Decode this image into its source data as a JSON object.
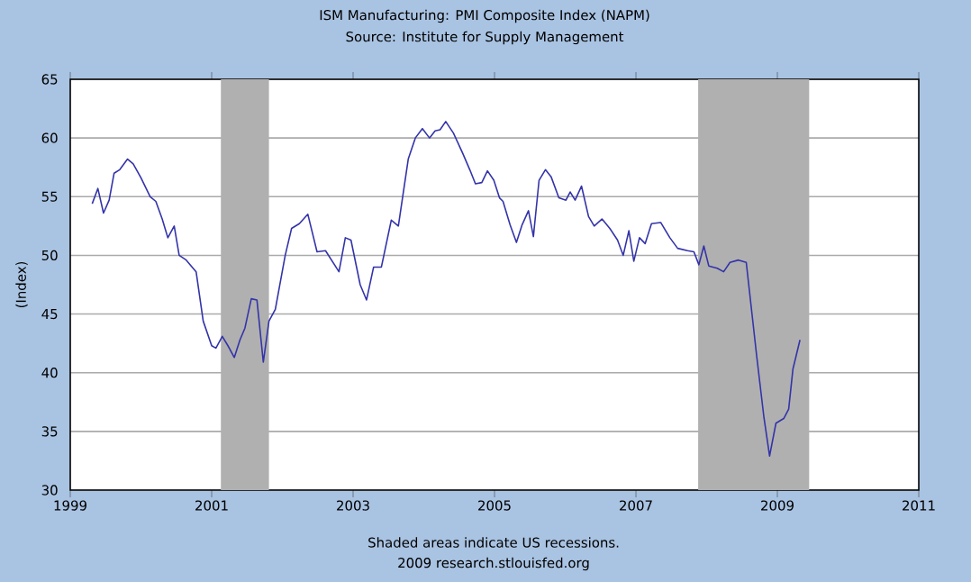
{
  "chart_data": {
    "type": "line",
    "title": "ISM Manufacturing: PMI Composite Index (NAPM)",
    "subtitle": "Source: Institute for Supply Management",
    "ylabel": "(Index)",
    "x": [
      1999.31,
      1999.39,
      1999.47,
      1999.55,
      1999.62,
      1999.7,
      1999.81,
      1999.89,
      2000.0,
      2000.13,
      2000.21,
      2000.3,
      2000.38,
      2000.47,
      2000.54,
      2000.64,
      2000.78,
      2000.88,
      2001.0,
      2001.06,
      2001.15,
      2001.23,
      2001.32,
      2001.4,
      2001.47,
      2001.56,
      2001.64,
      2001.73,
      2001.81,
      2001.9,
      2002.04,
      2002.13,
      2002.24,
      2002.36,
      2002.49,
      2002.61,
      2002.8,
      2002.89,
      2002.97,
      2003.1,
      2003.19,
      2003.29,
      2003.4,
      2003.54,
      2003.64,
      2003.78,
      2003.88,
      2003.98,
      2004.08,
      2004.16,
      2004.23,
      2004.31,
      2004.42,
      2004.55,
      2004.65,
      2004.73,
      2004.82,
      2004.9,
      2004.99,
      2005.07,
      2005.12,
      2005.22,
      2005.31,
      2005.39,
      2005.48,
      2005.55,
      2005.63,
      2005.72,
      2005.8,
      2005.91,
      2006.01,
      2006.07,
      2006.14,
      2006.23,
      2006.33,
      2006.41,
      2006.52,
      2006.63,
      2006.74,
      2006.82,
      2006.9,
      2006.97,
      2007.05,
      2007.13,
      2007.22,
      2007.35,
      2007.48,
      2007.59,
      2007.73,
      2007.82,
      2007.89,
      2007.96,
      2008.03,
      2008.15,
      2008.24,
      2008.33,
      2008.45,
      2008.56,
      2008.71,
      2008.81,
      2008.89,
      2008.98,
      2009.09,
      2009.16,
      2009.22,
      2009.32
    ],
    "series": [
      {
        "color": "#3333aa",
        "values": [
          54.4,
          55.7,
          53.6,
          54.7,
          57.0,
          57.3,
          58.2,
          57.8,
          56.6,
          55.0,
          54.6,
          53.1,
          51.5,
          52.5,
          50.0,
          49.6,
          48.6,
          44.4,
          42.3,
          42.1,
          43.1,
          42.3,
          41.3,
          42.8,
          43.8,
          46.3,
          46.2,
          40.9,
          44.4,
          45.4,
          50.0,
          52.3,
          52.7,
          53.5,
          50.3,
          50.4,
          48.6,
          51.5,
          51.3,
          47.5,
          46.2,
          49.0,
          49.0,
          53.0,
          52.5,
          58.2,
          60.0,
          60.8,
          60.0,
          60.6,
          60.7,
          61.4,
          60.4,
          58.7,
          57.3,
          56.1,
          56.2,
          57.2,
          56.4,
          54.9,
          54.6,
          52.6,
          51.1,
          52.6,
          53.8,
          51.6,
          56.4,
          57.3,
          56.7,
          54.9,
          54.7,
          55.4,
          54.7,
          55.9,
          53.3,
          52.5,
          53.1,
          52.3,
          51.3,
          50.0,
          52.1,
          49.5,
          51.5,
          51.0,
          52.7,
          52.8,
          51.5,
          50.6,
          50.4,
          50.3,
          49.2,
          50.8,
          49.1,
          48.9,
          48.6,
          49.4,
          49.6,
          49.4,
          41.3,
          36.2,
          32.9,
          35.7,
          36.1,
          36.9,
          40.3,
          42.8
        ]
      }
    ],
    "xlim": [
      1999,
      2011
    ],
    "xticks": [
      1999,
      2001,
      2003,
      2005,
      2007,
      2009,
      2011
    ],
    "ylim": [
      30,
      65
    ],
    "yticks": [
      30,
      35,
      40,
      45,
      50,
      55,
      60,
      65
    ],
    "grid": "y",
    "bands": [
      {
        "axis": "x",
        "from": 2001.13,
        "to": 2001.81,
        "color": "#b0b0b0"
      },
      {
        "axis": "x",
        "from": 2007.88,
        "to": 2009.45,
        "color": "#b0b0b0"
      }
    ],
    "annotations": [
      "Shaded areas indicate US recessions.",
      "2009 research.stlouisfed.org"
    ]
  }
}
